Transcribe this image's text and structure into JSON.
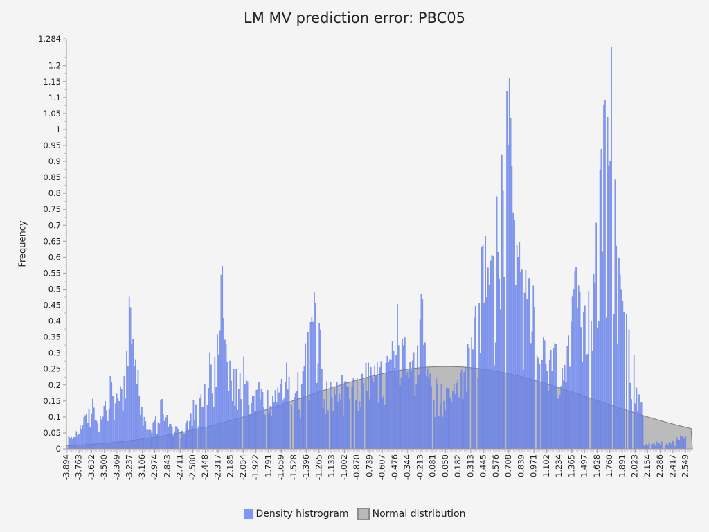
{
  "colors": {
    "background": "#f4f4f4",
    "histogram_fill": "#6f88f0",
    "histogram_stroke": "#5a73e0",
    "normal_fill": "#8c8c8c",
    "normal_stroke": "#777777",
    "axis": "#999999"
  },
  "chart_data": {
    "type": "bar",
    "title": "LM MV prediction error: PBC05",
    "xlabel": "",
    "ylabel": "Frequency",
    "grid": false,
    "legend_position": "bottom",
    "x_range": [
      -3.894,
      2.62
    ],
    "y_range": [
      0,
      1.284
    ],
    "y_tick_labels": [
      "0",
      "0.05",
      "0.1",
      "0.15",
      "0.2",
      "0.25",
      "0.3",
      "0.35",
      "0.4",
      "0.45",
      "0.5",
      "0.55",
      "0.6",
      "0.65",
      "0.7",
      "0.75",
      "0.8",
      "0.85",
      "0.9",
      "0.95",
      "1",
      "1.05",
      "1.1",
      "1.15",
      "1.2",
      "1.284"
    ],
    "x_tick_labels": [
      "-3.894",
      "-3.763",
      "-3.632",
      "-3.500",
      "-3.369",
      "-3.237",
      "-3.106",
      "-2.974",
      "-2.843",
      "-2.711",
      "-2.580",
      "-2.448",
      "-2.317",
      "-2.185",
      "-2.054",
      "-1.922",
      "-1.791",
      "-1.659",
      "-1.528",
      "-1.396",
      "-1.265",
      "-1.133",
      "-1.002",
      "-0.870",
      "-0.739",
      "-0.607",
      "-0.476",
      "-0.344",
      "-0.213",
      "-0.081",
      "0.050",
      "0.182",
      "0.313",
      "0.445",
      "0.576",
      "0.708",
      "0.839",
      "0.971",
      "1.102",
      "1.234",
      "1.365",
      "1.497",
      "1.628",
      "1.760",
      "1.891",
      "2.023",
      "2.154",
      "2.286",
      "2.417",
      "2.549"
    ],
    "series": [
      {
        "name": "Density histrogram",
        "type": "bar",
        "bin_width": 0.0131,
        "peaks": [
          {
            "x": -3.87,
            "y": 0.04
          },
          {
            "x": -3.76,
            "y": 0.07
          },
          {
            "x": -3.63,
            "y": 0.16
          },
          {
            "x": -3.55,
            "y": 0.1
          },
          {
            "x": -3.5,
            "y": 0.14
          },
          {
            "x": -3.44,
            "y": 0.23
          },
          {
            "x": -3.38,
            "y": 0.17
          },
          {
            "x": -3.3,
            "y": 0.22
          },
          {
            "x": -3.27,
            "y": 0.31
          },
          {
            "x": -3.24,
            "y": 0.51
          },
          {
            "x": -3.21,
            "y": 0.35
          },
          {
            "x": -3.15,
            "y": 0.24
          },
          {
            "x": -3.09,
            "y": 0.1
          },
          {
            "x": -3.0,
            "y": 0.08
          },
          {
            "x": -2.91,
            "y": 0.16
          },
          {
            "x": -2.8,
            "y": 0.07
          },
          {
            "x": -2.65,
            "y": 0.08
          },
          {
            "x": -2.58,
            "y": 0.15
          },
          {
            "x": -2.46,
            "y": 0.2
          },
          {
            "x": -2.41,
            "y": 0.3
          },
          {
            "x": -2.33,
            "y": 0.35
          },
          {
            "x": -2.28,
            "y": 0.6
          },
          {
            "x": -2.24,
            "y": 0.33
          },
          {
            "x": -2.16,
            "y": 0.25
          },
          {
            "x": -2.05,
            "y": 0.29
          },
          {
            "x": -1.9,
            "y": 0.21
          },
          {
            "x": -1.73,
            "y": 0.18
          },
          {
            "x": -1.61,
            "y": 0.27
          },
          {
            "x": -1.49,
            "y": 0.24
          },
          {
            "x": -1.38,
            "y": 0.37
          },
          {
            "x": -1.32,
            "y": 0.49
          },
          {
            "x": -1.26,
            "y": 0.38
          },
          {
            "x": -1.15,
            "y": 0.21
          },
          {
            "x": -1.03,
            "y": 0.23
          },
          {
            "x": -0.91,
            "y": 0.22
          },
          {
            "x": -0.78,
            "y": 0.27
          },
          {
            "x": -0.66,
            "y": 0.27
          },
          {
            "x": -0.56,
            "y": 0.29
          },
          {
            "x": -0.46,
            "y": 0.46
          },
          {
            "x": -0.38,
            "y": 0.35
          },
          {
            "x": -0.28,
            "y": 0.3
          },
          {
            "x": -0.2,
            "y": 0.5
          },
          {
            "x": -0.14,
            "y": 0.25
          },
          {
            "x": -0.05,
            "y": 0.22
          },
          {
            "x": 0.06,
            "y": 0.19
          },
          {
            "x": 0.17,
            "y": 0.21
          },
          {
            "x": 0.28,
            "y": 0.33
          },
          {
            "x": 0.36,
            "y": 0.45
          },
          {
            "x": 0.42,
            "y": 0.63
          },
          {
            "x": 0.46,
            "y": 0.67
          },
          {
            "x": 0.52,
            "y": 0.58
          },
          {
            "x": 0.58,
            "y": 0.79
          },
          {
            "x": 0.63,
            "y": 0.91
          },
          {
            "x": 0.68,
            "y": 1.11
          },
          {
            "x": 0.71,
            "y": 1.17
          },
          {
            "x": 0.76,
            "y": 0.72
          },
          {
            "x": 0.82,
            "y": 0.64
          },
          {
            "x": 0.88,
            "y": 0.56
          },
          {
            "x": 0.96,
            "y": 0.51
          },
          {
            "x": 1.07,
            "y": 0.34
          },
          {
            "x": 1.19,
            "y": 0.33
          },
          {
            "x": 1.31,
            "y": 0.31
          },
          {
            "x": 1.4,
            "y": 0.58
          },
          {
            "x": 1.48,
            "y": 0.42
          },
          {
            "x": 1.55,
            "y": 0.55
          },
          {
            "x": 1.62,
            "y": 0.72
          },
          {
            "x": 1.66,
            "y": 0.9
          },
          {
            "x": 1.7,
            "y": 1.11
          },
          {
            "x": 1.73,
            "y": 1.02
          },
          {
            "x": 1.77,
            "y": 1.28
          },
          {
            "x": 1.81,
            "y": 0.85
          },
          {
            "x": 1.87,
            "y": 0.51
          },
          {
            "x": 1.93,
            "y": 0.42
          },
          {
            "x": 2.0,
            "y": 0.33
          },
          {
            "x": 2.06,
            "y": 0.17
          },
          {
            "x": 2.16,
            "y": 0.09
          },
          {
            "x": 2.22,
            "y": 0.05
          },
          {
            "x": 2.29,
            "y": 0.08
          },
          {
            "x": 2.5,
            "y": 0.04
          }
        ]
      },
      {
        "name": "Normal distribution",
        "type": "area",
        "mean": 0.05,
        "sd": 1.53,
        "peak_density": 0.258
      }
    ]
  },
  "legend": {
    "items": [
      "Density histrogram",
      "Normal distribution"
    ]
  }
}
